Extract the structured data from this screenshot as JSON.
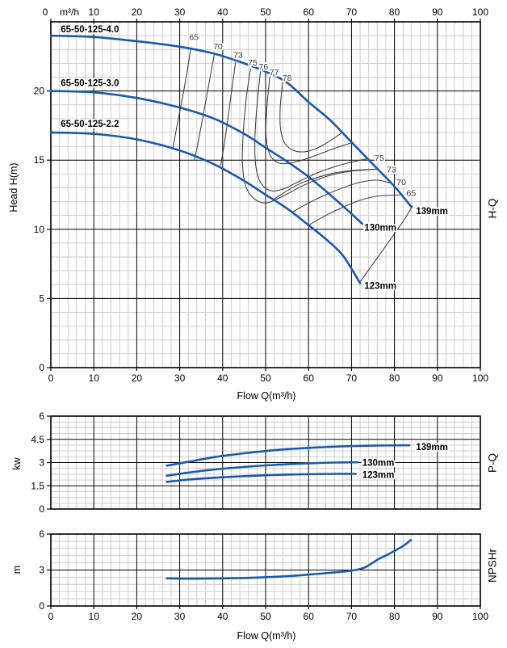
{
  "colors": {
    "curve_blue": "#1a5aad",
    "contour_gray": "#3b3b3b",
    "grid_minor": "#cdcdcd",
    "grid_major": "#000000",
    "eff_label": "#333333",
    "text": "#000000"
  },
  "chart_data": [
    {
      "type": "line",
      "name": "H-Q",
      "xlabel": "Flow Q(m³/h)",
      "ylabel": "Head H(m)",
      "right_label": "H-Q",
      "top_axis_unit": "m³/h",
      "xlim": [
        0,
        100
      ],
      "ylim": [
        0,
        25
      ],
      "x_major": 10,
      "x_minor": 2,
      "y_major": 5,
      "y_minor": 1,
      "grid": true,
      "x_ticks": [
        0,
        10,
        20,
        30,
        40,
        50,
        60,
        70,
        80,
        90,
        100
      ],
      "top_ticks": [
        0,
        10,
        20,
        30,
        40,
        50,
        60,
        70,
        80,
        90,
        100
      ],
      "y_ticks": [
        0,
        5,
        10,
        15,
        20
      ],
      "series": [
        {
          "name": "65-50-125-4.0",
          "impeller": "139mm",
          "model_label_at": [
            2.3,
            24.25
          ],
          "end_label": "139mm",
          "end_label_at": [
            85,
            11.1
          ],
          "points": [
            [
              0,
              24
            ],
            [
              10,
              23.9
            ],
            [
              20,
              23.6
            ],
            [
              30,
              23.2
            ],
            [
              38,
              22.7
            ],
            [
              45,
              22.0
            ],
            [
              50,
              21.4
            ],
            [
              55,
              20.6
            ],
            [
              60,
              19.2
            ],
            [
              65,
              17.9
            ],
            [
              70,
              16.3
            ],
            [
              75,
              14.7
            ],
            [
              80,
              13.1
            ],
            [
              84,
              11.6
            ]
          ]
        },
        {
          "name": "65-50-125-3.0",
          "impeller": "130mm",
          "model_label_at": [
            2.3,
            20.35
          ],
          "end_label": "130mm",
          "end_label_at": [
            73,
            9.9
          ],
          "points": [
            [
              0,
              20
            ],
            [
              10,
              19.9
            ],
            [
              20,
              19.5
            ],
            [
              30,
              18.8
            ],
            [
              38,
              18.0
            ],
            [
              45,
              16.9
            ],
            [
              50,
              15.9
            ],
            [
              55,
              14.9
            ],
            [
              60,
              13.8
            ],
            [
              65,
              12.5
            ],
            [
              69,
              11.4
            ],
            [
              72.5,
              10.4
            ]
          ]
        },
        {
          "name": "65-50-125-2.2",
          "impeller": "123mm",
          "model_label_at": [
            2.3,
            17.4
          ],
          "end_label": "123mm",
          "end_label_at": [
            73,
            5.7
          ],
          "points": [
            [
              0,
              17
            ],
            [
              10,
              16.9
            ],
            [
              20,
              16.5
            ],
            [
              30,
              15.7
            ],
            [
              38,
              14.7
            ],
            [
              45,
              13.5
            ],
            [
              50,
              12.5
            ],
            [
              55,
              11.5
            ],
            [
              60,
              10.3
            ],
            [
              64,
              9.3
            ],
            [
              68,
              8.1
            ],
            [
              72,
              6.1
            ]
          ]
        }
      ],
      "efficiency_contours": [
        {
          "eff": 65,
          "branch": "left",
          "points": [
            [
              32.6,
              23.1
            ],
            [
              31.5,
              21.0
            ],
            [
              30.2,
              18.8
            ],
            [
              29.2,
              17.2
            ],
            [
              28.4,
              15.8
            ]
          ]
        },
        {
          "eff": 70,
          "branch": "left",
          "points": [
            [
              38,
              22.6
            ],
            [
              36.8,
              20.5
            ],
            [
              35.5,
              18.3
            ],
            [
              34.3,
              16.3
            ],
            [
              33.4,
              15.0
            ]
          ]
        },
        {
          "eff": 73,
          "branch": "left",
          "points": [
            [
              43,
              22.1
            ],
            [
              42,
              19.8
            ],
            [
              41,
              17.5
            ],
            [
              40.2,
              15.8
            ],
            [
              39.5,
              14.6
            ]
          ]
        },
        {
          "eff": 75,
          "branch": "closed",
          "points": [
            [
              46.5,
              21.6
            ],
            [
              45.5,
              19.5
            ],
            [
              44.8,
              17.0
            ],
            [
              44.6,
              14.8
            ],
            [
              45.3,
              13.2
            ],
            [
              47,
              12.3
            ],
            [
              50,
              11.9
            ],
            [
              54,
              12.4
            ],
            [
              59,
              13.2
            ],
            [
              65,
              13.9
            ],
            [
              70,
              14.2
            ],
            [
              76,
              14.35
            ]
          ]
        },
        {
          "eff": 76,
          "branch": "closed",
          "points": [
            [
              48.8,
              21.4
            ],
            [
              48,
              19.0
            ],
            [
              47.5,
              16.5
            ],
            [
              47.7,
              14.6
            ],
            [
              48.8,
              13.4
            ],
            [
              51,
              12.8
            ],
            [
              54,
              12.9
            ],
            [
              58,
              13.5
            ],
            [
              63,
              14.2
            ],
            [
              68,
              14.7
            ],
            [
              73.5,
              15.1
            ]
          ]
        },
        {
          "eff": 77,
          "branch": "closed",
          "points": [
            [
              51,
              21.1
            ],
            [
              50.3,
              18.8
            ],
            [
              50.1,
              16.8
            ],
            [
              51,
              15.4
            ],
            [
              53,
              14.8
            ],
            [
              56,
              14.8
            ],
            [
              59.5,
              15.1
            ],
            [
              63,
              15.5
            ],
            [
              66.5,
              15.9
            ],
            [
              70,
              16.25
            ]
          ]
        },
        {
          "eff": 78,
          "branch": "closed",
          "points": [
            [
              54,
              20.7
            ],
            [
              53.4,
              18.8
            ],
            [
              53.5,
              17.2
            ],
            [
              54.5,
              16.2
            ],
            [
              56.5,
              15.7
            ],
            [
              59,
              15.6
            ],
            [
              61.5,
              15.8
            ],
            [
              64,
              16.2
            ],
            [
              66,
              16.6
            ],
            [
              67.8,
              17.0
            ]
          ]
        },
        {
          "eff": 75,
          "branch": "right",
          "points": [
            [
              52,
              12.2
            ],
            [
              58,
              13.3
            ],
            [
              65,
              14.0
            ],
            [
              70,
              14.25
            ],
            [
              76,
              14.35
            ]
          ]
        },
        {
          "eff": 73,
          "branch": "right",
          "points": [
            [
              56,
              11.2
            ],
            [
              60,
              11.9
            ],
            [
              64,
              12.5
            ],
            [
              68,
              13.0
            ],
            [
              72,
              13.4
            ],
            [
              76,
              13.55
            ],
            [
              79.5,
              13.3
            ]
          ]
        },
        {
          "eff": 70,
          "branch": "right",
          "points": [
            [
              60,
              10.3
            ],
            [
              64,
              11.0
            ],
            [
              68,
              11.6
            ],
            [
              72,
              12.1
            ],
            [
              76,
              12.4
            ],
            [
              82,
              12.5
            ]
          ]
        },
        {
          "eff": 65,
          "branch": "right",
          "points": [
            [
              72,
              6.2
            ],
            [
              75,
              7.5
            ],
            [
              78,
              8.8
            ],
            [
              80.5,
              9.9
            ],
            [
              82.5,
              10.8
            ],
            [
              84.2,
              11.7
            ]
          ]
        }
      ],
      "efficiency_labels": [
        {
          "text": "65",
          "at": [
            33.3,
            23.7
          ]
        },
        {
          "text": "70",
          "at": [
            38.9,
            23.0
          ]
        },
        {
          "text": "73",
          "at": [
            43.6,
            22.4
          ]
        },
        {
          "text": "75",
          "at": [
            47.0,
            21.85
          ]
        },
        {
          "text": "76",
          "at": [
            49.5,
            21.55
          ]
        },
        {
          "text": "77",
          "at": [
            52.0,
            21.15
          ]
        },
        {
          "text": "78",
          "at": [
            55.0,
            20.75
          ]
        },
        {
          "text": "75",
          "at": [
            76.5,
            14.95
          ]
        },
        {
          "text": "73",
          "at": [
            79.3,
            14.1
          ]
        },
        {
          "text": "70",
          "at": [
            81.6,
            13.2
          ]
        },
        {
          "text": "65",
          "at": [
            83.9,
            12.4
          ]
        }
      ]
    },
    {
      "type": "line",
      "name": "P-Q",
      "xlabel": "",
      "ylabel": "kw",
      "right_label": "P-Q",
      "xlim": [
        0,
        100
      ],
      "ylim": [
        0,
        6
      ],
      "x_major": 10,
      "x_minor": 2,
      "y_major": 1.5,
      "y_minor": 0.375,
      "grid": true,
      "y_ticks": [
        0,
        1.5,
        3,
        4.5,
        6
      ],
      "series": [
        {
          "name": "139mm",
          "end_label": "139mm",
          "end_label_at": [
            85,
            3.82
          ],
          "points": [
            [
              27,
              2.8
            ],
            [
              32,
              3.05
            ],
            [
              38,
              3.35
            ],
            [
              45,
              3.6
            ],
            [
              52,
              3.8
            ],
            [
              60,
              3.95
            ],
            [
              68,
              4.05
            ],
            [
              76,
              4.1
            ],
            [
              83.5,
              4.12
            ]
          ]
        },
        {
          "name": "130mm",
          "end_label": "130mm",
          "end_label_at": [
            72.5,
            2.78
          ],
          "points": [
            [
              27,
              2.15
            ],
            [
              32,
              2.35
            ],
            [
              38,
              2.55
            ],
            [
              45,
              2.72
            ],
            [
              52,
              2.85
            ],
            [
              60,
              2.95
            ],
            [
              66,
              3.0
            ],
            [
              71.5,
              3.02
            ]
          ]
        },
        {
          "name": "123mm",
          "end_label": "123mm",
          "end_label_at": [
            72.5,
            2.0
          ],
          "points": [
            [
              27,
              1.75
            ],
            [
              32,
              1.9
            ],
            [
              38,
              2.02
            ],
            [
              45,
              2.12
            ],
            [
              52,
              2.2
            ],
            [
              60,
              2.25
            ],
            [
              66,
              2.27
            ],
            [
              71,
              2.27
            ]
          ]
        }
      ]
    },
    {
      "type": "line",
      "name": "NPSHr",
      "xlabel": "Flow Q(m³/h)",
      "ylabel": "m",
      "right_label": "NPSHr",
      "xlim": [
        0,
        100
      ],
      "ylim": [
        0,
        6
      ],
      "x_major": 10,
      "x_minor": 2,
      "y_major": 3,
      "y_minor": 0.6,
      "grid": true,
      "x_ticks": [
        0,
        10,
        20,
        30,
        40,
        50,
        60,
        70,
        80,
        90,
        100
      ],
      "y_ticks": [
        0,
        3,
        6
      ],
      "series": [
        {
          "name": "NPSHr",
          "points": [
            [
              27,
              2.3
            ],
            [
              33,
              2.28
            ],
            [
              40,
              2.3
            ],
            [
              46,
              2.35
            ],
            [
              52,
              2.43
            ],
            [
              57,
              2.53
            ],
            [
              62,
              2.68
            ],
            [
              66,
              2.8
            ],
            [
              70,
              2.95
            ],
            [
              73,
              3.2
            ],
            [
              76,
              3.85
            ],
            [
              79,
              4.4
            ],
            [
              82,
              5.0
            ],
            [
              83.8,
              5.5
            ]
          ]
        }
      ]
    }
  ]
}
